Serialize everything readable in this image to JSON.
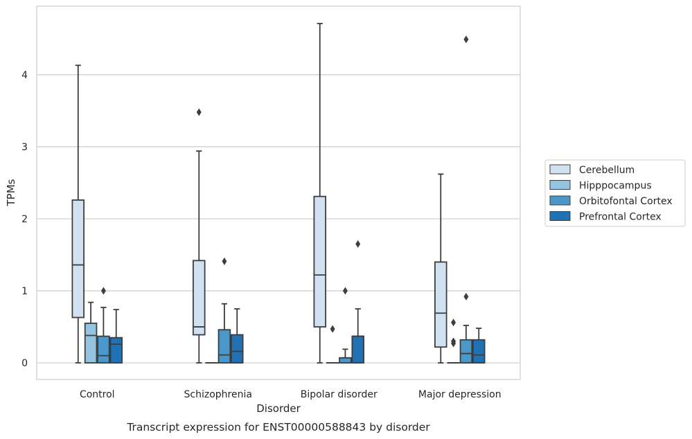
{
  "chart_data": {
    "type": "box",
    "caption": "Transcript expression for ENST00000588843 by disorder",
    "xlabel": "Disorder",
    "ylabel": "TPMs",
    "ylim": [
      -0.23,
      4.95
    ],
    "yticks": [
      "0",
      "1",
      "2",
      "3",
      "4"
    ],
    "grid": true,
    "legend_placement": "right",
    "categories": [
      "Control",
      "Schizophrenia",
      "Bipolar disorder",
      "Major depression"
    ],
    "series": [
      {
        "name": "Cerebellum",
        "color": "#d0e1f2",
        "boxes": [
          {
            "whislo": 0,
            "q1": 0.63,
            "med": 1.36,
            "q3": 2.26,
            "whishi": 4.13,
            "fliers": []
          },
          {
            "whislo": 0,
            "q1": 0.39,
            "med": 0.5,
            "q3": 1.42,
            "whishi": 2.94,
            "fliers": [
              3.48
            ]
          },
          {
            "whislo": 0,
            "q1": 0.5,
            "med": 1.22,
            "q3": 2.31,
            "whishi": 4.71,
            "fliers": []
          },
          {
            "whislo": 0,
            "q1": 0.22,
            "med": 0.69,
            "q3": 1.4,
            "whishi": 2.62,
            "fliers": []
          }
        ]
      },
      {
        "name": "Hipppocampus",
        "color": "#94c4df",
        "boxes": [
          {
            "whislo": 0,
            "q1": 0,
            "med": 0.38,
            "q3": 0.55,
            "whishi": 0.84,
            "fliers": []
          },
          {
            "whislo": 0,
            "q1": 0,
            "med": 0,
            "q3": 0,
            "whishi": 0,
            "fliers": []
          },
          {
            "whislo": 0,
            "q1": 0,
            "med": 0,
            "q3": 0,
            "whishi": 0,
            "fliers": [
              0.47
            ]
          },
          {
            "whislo": 0,
            "q1": 0,
            "med": 0,
            "q3": 0,
            "whishi": 0,
            "fliers": [
              0.56,
              0.3,
              0.27
            ]
          }
        ]
      },
      {
        "name": "Orbitofontal Cortex",
        "color": "#4a98c9",
        "boxes": [
          {
            "whislo": 0,
            "q1": 0,
            "med": 0.1,
            "q3": 0.37,
            "whishi": 0.77,
            "fliers": [
              1.0
            ]
          },
          {
            "whislo": 0,
            "q1": 0,
            "med": 0.11,
            "q3": 0.46,
            "whishi": 0.82,
            "fliers": [
              1.41
            ]
          },
          {
            "whislo": 0,
            "q1": 0,
            "med": 0.07,
            "q3": 0.07,
            "whishi": 0.19,
            "fliers": [
              1.0
            ]
          },
          {
            "whislo": 0,
            "q1": 0,
            "med": 0.13,
            "q3": 0.32,
            "whishi": 0.52,
            "fliers": [
              0.92,
              4.49
            ]
          }
        ]
      },
      {
        "name": "Prefrontal Cortex",
        "color": "#2171b5",
        "boxes": [
          {
            "whislo": 0,
            "q1": 0,
            "med": 0.26,
            "q3": 0.35,
            "whishi": 0.74,
            "fliers": []
          },
          {
            "whislo": 0,
            "q1": 0,
            "med": 0.16,
            "q3": 0.39,
            "whishi": 0.75,
            "fliers": []
          },
          {
            "whislo": 0,
            "q1": 0,
            "med": 0.37,
            "q3": 0.37,
            "whishi": 0.75,
            "fliers": [
              1.65
            ]
          },
          {
            "whislo": 0,
            "q1": 0,
            "med": 0.11,
            "q3": 0.32,
            "whishi": 0.48,
            "fliers": []
          }
        ]
      }
    ]
  }
}
